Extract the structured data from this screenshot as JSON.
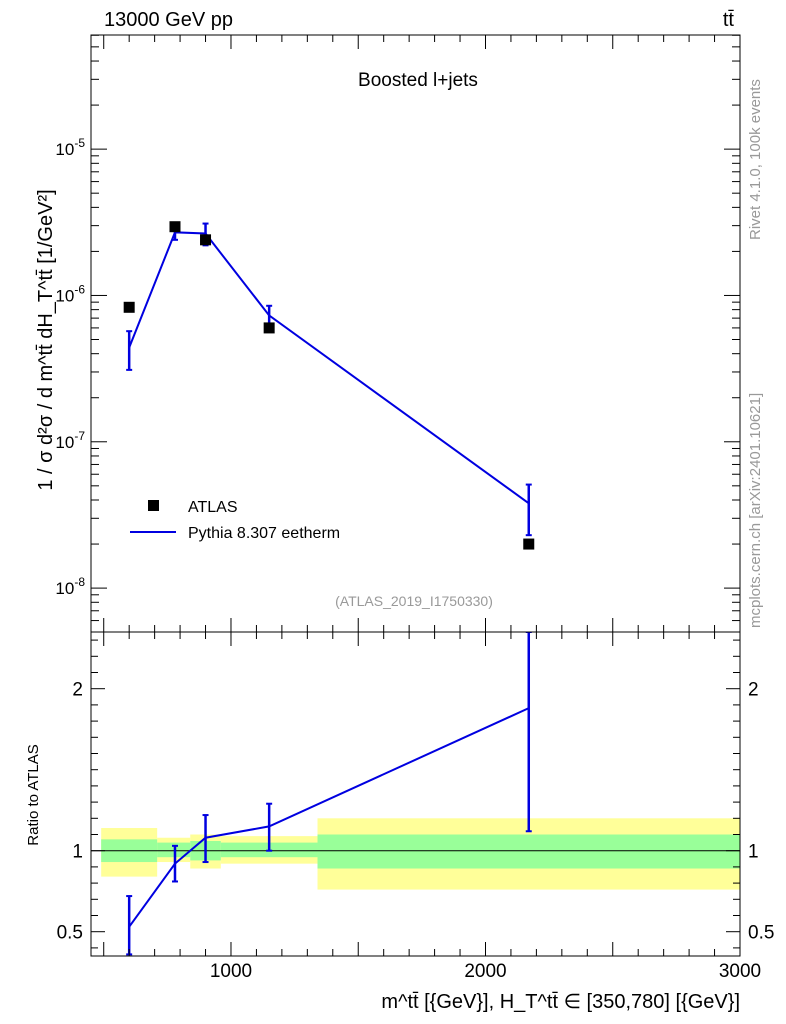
{
  "header": {
    "left": "13000 GeV pp",
    "right": "tt̄"
  },
  "side": {
    "rivet": "Rivet 4.1.0,  100k events",
    "mcplots": "mcplots.cern.ch [arXiv:2401.10621]"
  },
  "colors": {
    "data": "#000000",
    "mc": "#0000e0",
    "band_stat": "#99ff99",
    "band_total": "#ffff99",
    "analysis": "#999999"
  },
  "chart_data": [
    {
      "type": "scatter",
      "scale": "log",
      "title": "Boosted l+jets",
      "analysis_id": "(ATLAS_2019_I1750330)",
      "ylabel": "1 / σ d²σ / d m^tt̄ dH_T^tt̄ [1/GeV²]",
      "xlim": [
        450,
        3000
      ],
      "ylim_log10": [
        -8.3,
        -4.22
      ],
      "y_tick_labels": [
        "10^-8",
        "10^-7",
        "10^-6",
        "10^-5"
      ],
      "legend": [
        {
          "label": "ATLAS",
          "marker": "square"
        },
        {
          "label": "Pythia 8.307 eetherm",
          "marker": "line"
        }
      ],
      "series": [
        {
          "name": "ATLAS",
          "points": [
            {
              "x": 600,
              "y": 8.3e-07
            },
            {
              "x": 780,
              "y": 2.95e-06
            },
            {
              "x": 900,
              "y": 2.4e-06
            },
            {
              "x": 1150,
              "y": 6e-07
            },
            {
              "x": 2170,
              "y": 2e-08
            }
          ]
        },
        {
          "name": "Pythia 8.307 eetherm",
          "points": [
            {
              "x": 600,
              "y": 4.4e-07,
              "lo": 3.1e-07,
              "hi": 5.7e-07
            },
            {
              "x": 780,
              "y": 2.7e-06,
              "lo": 2.4e-06,
              "hi": 3e-06
            },
            {
              "x": 900,
              "y": 2.65e-06,
              "lo": 2.2e-06,
              "hi": 3.1e-06
            },
            {
              "x": 1150,
              "y": 7.3e-07,
              "lo": 6e-07,
              "hi": 8.5e-07
            },
            {
              "x": 2170,
              "y": 3.8e-08,
              "lo": 2.3e-08,
              "hi": 5.1e-08
            }
          ]
        }
      ]
    },
    {
      "type": "line",
      "ylabel": "Ratio to ATLAS",
      "xlabel": "m^tt̄ [{GeV}], H_T^tt̄ ∈ [350,780] [{GeV}]",
      "xlim": [
        450,
        3000
      ],
      "ylim": [
        0.35,
        2.35
      ],
      "x_ticks": [
        1000,
        2000,
        3000
      ],
      "y_ticks": [
        0.5,
        1,
        2
      ],
      "bands": [
        {
          "x0": 490,
          "x1": 710,
          "stat": [
            0.93,
            1.07
          ],
          "total": [
            0.84,
            1.14
          ]
        },
        {
          "x0": 710,
          "x1": 840,
          "stat": [
            0.96,
            1.05
          ],
          "total": [
            0.93,
            1.08
          ]
        },
        {
          "x0": 840,
          "x1": 960,
          "stat": [
            0.94,
            1.06
          ],
          "total": [
            0.89,
            1.1
          ]
        },
        {
          "x0": 960,
          "x1": 1340,
          "stat": [
            0.96,
            1.05
          ],
          "total": [
            0.92,
            1.09
          ]
        },
        {
          "x0": 1340,
          "x1": 3000,
          "stat": [
            0.89,
            1.1
          ],
          "total": [
            0.76,
            1.2
          ]
        }
      ],
      "series": [
        {
          "name": "Pythia 8.307 eetherm",
          "points": [
            {
              "x": 600,
              "y": 0.53,
              "lo": 0.36,
              "hi": 0.72
            },
            {
              "x": 780,
              "y": 0.92,
              "lo": 0.81,
              "hi": 1.03
            },
            {
              "x": 900,
              "y": 1.08,
              "lo": 0.93,
              "hi": 1.22
            },
            {
              "x": 1150,
              "y": 1.15,
              "lo": 1.0,
              "hi": 1.29
            },
            {
              "x": 2170,
              "y": 1.88,
              "lo": 1.12,
              "hi": 2.35
            }
          ]
        }
      ]
    }
  ]
}
